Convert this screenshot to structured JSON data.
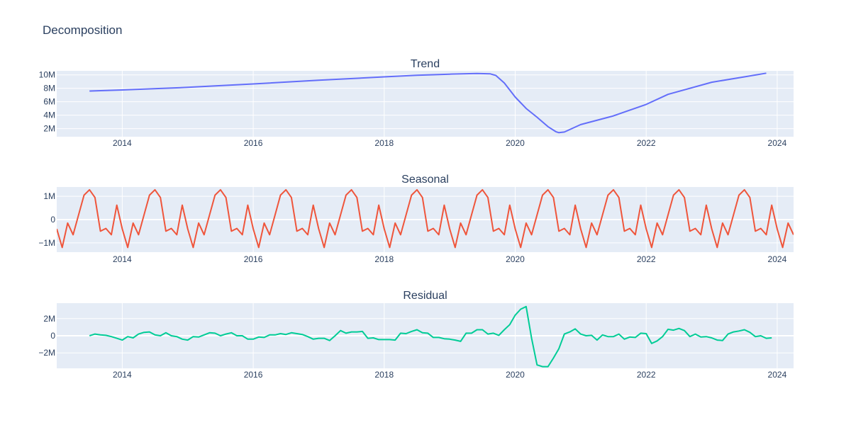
{
  "title": "Decomposition",
  "colors": {
    "trend": "#636efa",
    "seasonal": "#ef553b",
    "residual": "#00cc96",
    "plot_bg": "#e5ecf6",
    "grid": "#ffffff",
    "text": "#2a3f5f"
  },
  "chart_data": [
    {
      "type": "line",
      "title": "Trend",
      "xlabel": "",
      "ylabel": "",
      "xlim": [
        "2013-01-01",
        "2024-04-01"
      ],
      "ylim": [
        800000,
        10600000
      ],
      "x_ticks": [
        "2014",
        "2016",
        "2018",
        "2020",
        "2022",
        "2024"
      ],
      "y_ticks": [
        {
          "value": 2000000,
          "label": "2M"
        },
        {
          "value": 4000000,
          "label": "4M"
        },
        {
          "value": 6000000,
          "label": "6M"
        },
        {
          "value": 8000000,
          "label": "8M"
        },
        {
          "value": 10000000,
          "label": "10M"
        }
      ],
      "grid": true,
      "series": [
        {
          "color": "#636efa",
          "points": [
            [
              "2013-07-01",
              7600000
            ],
            [
              "2014-01-01",
              7750000
            ],
            [
              "2015-01-01",
              8150000
            ],
            [
              "2016-01-01",
              8650000
            ],
            [
              "2017-01-01",
              9200000
            ],
            [
              "2018-01-01",
              9700000
            ],
            [
              "2018-07-01",
              9950000
            ],
            [
              "2019-01-01",
              10100000
            ],
            [
              "2019-06-01",
              10200000
            ],
            [
              "2019-08-15",
              10150000
            ],
            [
              "2019-09-15",
              9900000
            ],
            [
              "2019-11-01",
              8800000
            ],
            [
              "2020-01-01",
              6700000
            ],
            [
              "2020-03-01",
              5000000
            ],
            [
              "2020-05-01",
              3700000
            ],
            [
              "2020-07-01",
              2300000
            ],
            [
              "2020-08-15",
              1550000
            ],
            [
              "2020-09-01",
              1400000
            ],
            [
              "2020-10-01",
              1500000
            ],
            [
              "2021-01-01",
              2600000
            ],
            [
              "2021-07-01",
              3900000
            ],
            [
              "2022-01-01",
              5600000
            ],
            [
              "2022-05-01",
              7100000
            ],
            [
              "2023-01-01",
              8900000
            ],
            [
              "2023-07-01",
              9700000
            ],
            [
              "2023-11-01",
              10250000
            ]
          ]
        }
      ]
    },
    {
      "type": "line",
      "title": "Seasonal",
      "xlabel": "",
      "ylabel": "",
      "xlim": [
        "2013-01-01",
        "2024-04-01"
      ],
      "ylim": [
        -1400000,
        1400000
      ],
      "x_ticks": [
        "2014",
        "2016",
        "2018",
        "2020",
        "2022",
        "2024"
      ],
      "y_ticks": [
        {
          "value": -1000000,
          "label": "−1M"
        },
        {
          "value": 0,
          "label": "0"
        },
        {
          "value": 1000000,
          "label": "1M"
        }
      ],
      "grid": true,
      "start": "2013-01-01",
      "end": "2024-04-01",
      "period_months": 12,
      "series": [
        {
          "color": "#ef553b",
          "monthly_pattern": [
            -400000,
            -1200000,
            -150000,
            -650000,
            200000,
            1050000,
            1280000,
            950000,
            -500000,
            -380000,
            -650000,
            620000
          ]
        }
      ]
    },
    {
      "type": "line",
      "title": "Residual",
      "xlabel": "",
      "ylabel": "",
      "xlim": [
        "2013-01-01",
        "2024-04-01"
      ],
      "ylim": [
        -3800000,
        3800000
      ],
      "x_ticks": [
        "2014",
        "2016",
        "2018",
        "2020",
        "2022",
        "2024"
      ],
      "y_ticks": [
        {
          "value": -2000000,
          "label": "−2M"
        },
        {
          "value": 0,
          "label": "0"
        },
        {
          "value": 2000000,
          "label": "2M"
        }
      ],
      "grid": true,
      "start": "2013-07-01",
      "series": [
        {
          "color": "#00cc96",
          "monthly_values": [
            0,
            200000,
            100000,
            50000,
            -100000,
            -300000,
            -500000,
            -100000,
            -250000,
            200000,
            400000,
            450000,
            100000,
            0,
            350000,
            0,
            -100000,
            -400000,
            -500000,
            -100000,
            -150000,
            100000,
            350000,
            300000,
            0,
            200000,
            350000,
            0,
            0,
            -400000,
            -400000,
            -150000,
            -200000,
            100000,
            100000,
            250000,
            150000,
            350000,
            250000,
            150000,
            -100000,
            -400000,
            -300000,
            -300000,
            -550000,
            0,
            600000,
            300000,
            450000,
            450000,
            500000,
            -300000,
            -250000,
            -450000,
            -450000,
            -450000,
            -500000,
            300000,
            250000,
            500000,
            700000,
            350000,
            300000,
            -200000,
            -200000,
            -350000,
            -400000,
            -500000,
            -650000,
            300000,
            300000,
            700000,
            700000,
            200000,
            300000,
            50000,
            700000,
            1300000,
            2400000,
            3100000,
            3400000,
            -300000,
            -3400000,
            -3600000,
            -3600000,
            -2600000,
            -1500000,
            200000,
            450000,
            800000,
            200000,
            0,
            50000,
            -500000,
            100000,
            -100000,
            -100000,
            200000,
            -400000,
            -150000,
            -200000,
            300000,
            250000,
            -900000,
            -600000,
            -100000,
            750000,
            650000,
            850000,
            600000,
            -100000,
            200000,
            -150000,
            -100000,
            -250000,
            -500000,
            -550000,
            200000,
            450000,
            550000,
            700000,
            400000,
            -100000,
            0,
            -300000,
            -250000
          ]
        }
      ]
    }
  ]
}
